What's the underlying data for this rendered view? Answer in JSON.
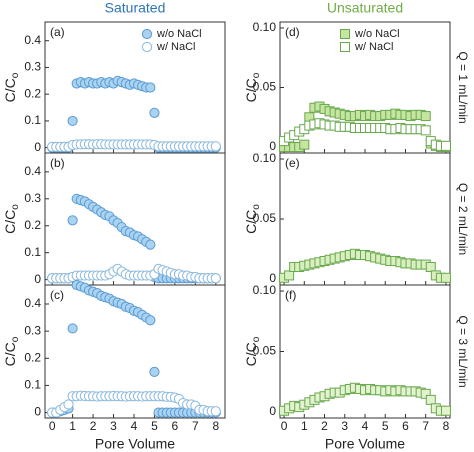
{
  "chart_data": [
    {
      "type": "scatter",
      "title": "Saturated",
      "title_color": "#2e75b6",
      "panel_label": "(a)",
      "ylabel": "C/C",
      "ylabel_sub": "o",
      "legend": "upper right",
      "x": [
        0,
        0.2,
        0.4,
        0.6,
        0.8,
        1,
        1.2,
        1.4,
        1.6,
        1.8,
        2,
        2.2,
        2.4,
        2.6,
        2.8,
        3,
        3.2,
        3.4,
        3.6,
        3.8,
        4,
        4.2,
        4.4,
        4.6,
        4.8,
        5,
        5.2,
        5.4,
        5.6,
        5.8,
        6,
        6.2,
        6.4,
        6.6,
        6.8,
        7,
        7.2,
        7.4,
        7.6,
        7.8,
        8
      ],
      "xlim": [
        -0.35,
        8.45
      ],
      "xticks": [
        0,
        1,
        2,
        3,
        4,
        5,
        6,
        7,
        8
      ],
      "ylim": [
        -0.02,
        0.47
      ],
      "yticks": [
        0,
        0.1,
        0.2,
        0.3,
        0.4
      ],
      "series": [
        {
          "name": "w/o NaCl",
          "marker": "circle",
          "filled": true,
          "color": "#5b9bd5",
          "fill": "#a9d3f0",
          "values": [
            0,
            0,
            0,
            0,
            0,
            0.1,
            0.24,
            0.245,
            0.24,
            0.245,
            0.24,
            0.24,
            0.245,
            0.24,
            0.245,
            0.24,
            0.25,
            0.245,
            0.24,
            0.235,
            0.24,
            0.235,
            0.23,
            0.225,
            0.225,
            0.13,
            0,
            0,
            0,
            0,
            0,
            0,
            0,
            0,
            0,
            0,
            0,
            0,
            0,
            0,
            0
          ]
        },
        {
          "name": "w/  NaCl",
          "marker": "circle",
          "filled": false,
          "color": "#8ab8dc",
          "fill": "#ffffff",
          "values": [
            0.003,
            0.003,
            0.003,
            0.003,
            0.003,
            0.01,
            0.012,
            0.012,
            0.013,
            0.013,
            0.012,
            0.013,
            0.013,
            0.012,
            0.012,
            0.012,
            0.012,
            0.012,
            0.012,
            0.012,
            0.012,
            0.012,
            0.012,
            0.012,
            0.012,
            0.01,
            0.005,
            0.005,
            0.005,
            0.005,
            0.005,
            0.005,
            0.005,
            0.005,
            0.005,
            0.005,
            0.005,
            0.005,
            0.005,
            0.005,
            0.005
          ]
        }
      ]
    },
    {
      "type": "scatter",
      "panel_label": "(b)",
      "ylabel": "C/C",
      "ylabel_sub": "o",
      "x": [
        0,
        0.2,
        0.4,
        0.6,
        0.8,
        1,
        1.2,
        1.4,
        1.6,
        1.8,
        2,
        2.2,
        2.4,
        2.6,
        2.8,
        3,
        3.2,
        3.4,
        3.6,
        3.8,
        4,
        4.2,
        4.4,
        4.6,
        4.8,
        5,
        5.2,
        5.4,
        5.6,
        5.8,
        6,
        6.2,
        6.4,
        6.6,
        6.8,
        7,
        7.2,
        7.4,
        7.6,
        7.8,
        8
      ],
      "xlim": [
        -0.35,
        8.45
      ],
      "xticks": [
        0,
        1,
        2,
        3,
        4,
        5,
        6,
        7,
        8
      ],
      "ylim": [
        -0.02,
        0.47
      ],
      "yticks": [
        0,
        0.1,
        0.2,
        0.3,
        0.4
      ],
      "series": [
        {
          "marker": "circle",
          "filled": true,
          "color": "#5b9bd5",
          "fill": "#a9d3f0",
          "values": [
            0.005,
            0.005,
            0.005,
            0.005,
            0.005,
            0.22,
            0.3,
            0.295,
            0.29,
            0.28,
            0.27,
            0.26,
            0.25,
            0.24,
            0.235,
            0.22,
            0.21,
            0.195,
            0.18,
            0.175,
            0.165,
            0.16,
            0.15,
            0.14,
            0.13,
            0.01,
            0.005,
            0.005,
            0.005,
            0.005,
            0.005,
            0.005,
            0.005,
            0.005,
            0.005,
            0.005,
            0.005,
            0.005,
            0.005,
            0.005,
            0.005
          ]
        },
        {
          "marker": "circle",
          "filled": false,
          "color": "#8ab8dc",
          "fill": "#ffffff",
          "values": [
            0.005,
            0.005,
            0.005,
            0.005,
            0.005,
            0.01,
            0.015,
            0.015,
            0.015,
            0.015,
            0.015,
            0.015,
            0.015,
            0.015,
            0.02,
            0.03,
            0.04,
            0.03,
            0.02,
            0.015,
            0.015,
            0.015,
            0.015,
            0.015,
            0.015,
            0.02,
            0.04,
            0.035,
            0.03,
            0.025,
            0.02,
            0.02,
            0.015,
            0.015,
            0.01,
            0.01,
            0.005,
            0.005,
            0.005,
            0.005,
            0.005
          ]
        }
      ]
    },
    {
      "type": "scatter",
      "panel_label": "(c)",
      "ylabel": "C/C",
      "ylabel_sub": "o",
      "xlabel": "Pore Volume",
      "x": [
        0,
        0.2,
        0.4,
        0.6,
        0.8,
        1,
        1.2,
        1.4,
        1.6,
        1.8,
        2,
        2.2,
        2.4,
        2.6,
        2.8,
        3,
        3.2,
        3.4,
        3.6,
        3.8,
        4,
        4.2,
        4.4,
        4.6,
        4.8,
        5,
        5.2,
        5.4,
        5.6,
        5.8,
        6,
        6.2,
        6.4,
        6.6,
        6.8,
        7,
        7.2,
        7.4,
        7.6,
        7.8,
        8
      ],
      "xlim": [
        -0.35,
        8.45
      ],
      "xticks": [
        0,
        1,
        2,
        3,
        4,
        5,
        6,
        7,
        8
      ],
      "ylim": [
        -0.02,
        0.47
      ],
      "yticks": [
        0,
        0.1,
        0.2,
        0.3,
        0.4
      ],
      "series": [
        {
          "marker": "circle",
          "filled": true,
          "color": "#5b9bd5",
          "fill": "#a9d3f0",
          "values": [
            0,
            0,
            0.005,
            0.01,
            0.015,
            0.31,
            0.47,
            0.465,
            0.46,
            0.45,
            0.445,
            0.44,
            0.43,
            0.425,
            0.42,
            0.41,
            0.405,
            0.4,
            0.39,
            0.385,
            0.375,
            0.37,
            0.36,
            0.35,
            0.34,
            0.15,
            0,
            0,
            0,
            0,
            0,
            0,
            0,
            0,
            0,
            0,
            0,
            0,
            0,
            0,
            0
          ]
        },
        {
          "marker": "circle",
          "filled": false,
          "color": "#8ab8dc",
          "fill": "#ffffff",
          "values": [
            0,
            0,
            0.01,
            0.02,
            0.03,
            0.06,
            0.06,
            0.062,
            0.061,
            0.06,
            0.06,
            0.059,
            0.06,
            0.06,
            0.06,
            0.061,
            0.06,
            0.06,
            0.059,
            0.06,
            0.06,
            0.06,
            0.059,
            0.06,
            0.06,
            0.06,
            0.06,
            0.06,
            0.058,
            0.058,
            0.055,
            0.05,
            0.035,
            0.03,
            0.03,
            0.025,
            0.01,
            0.01,
            0.005,
            0.005,
            0.005
          ]
        }
      ]
    },
    {
      "type": "scatter",
      "title": "Unsaturated",
      "title_color": "#70ad47",
      "panel_label": "(d)",
      "ylabel": "C/C",
      "ylabel_sub": "o",
      "side_label": "Q = 1 mL/min",
      "legend": "upper center",
      "x": [
        0,
        0.25,
        0.5,
        0.75,
        1,
        1.25,
        1.5,
        1.75,
        2,
        2.25,
        2.5,
        2.75,
        3,
        3.25,
        3.5,
        3.75,
        4,
        4.25,
        4.5,
        4.75,
        5,
        5.25,
        5.5,
        5.75,
        6,
        6.25,
        6.5,
        6.75,
        7,
        7.25,
        7.5,
        7.75,
        8
      ],
      "xlim": [
        -0.2,
        8.2
      ],
      "xticks": [
        0,
        1,
        2,
        3,
        4,
        5,
        6,
        7,
        8
      ],
      "ylim": [
        -0.005,
        0.105
      ],
      "yticks": [
        0,
        0.05,
        {
          "value": 0.1,
          "label": "0.10"
        }
      ],
      "series": [
        {
          "name": "w/o NaCl",
          "marker": "square",
          "filled": true,
          "color": "#6aa84f",
          "fill": "#c6e5a0",
          "values": [
            0,
            0,
            0,
            0,
            0.002,
            0.025,
            0.033,
            0.034,
            0.032,
            0.03,
            0.029,
            0.028,
            0.027,
            0.026,
            0.026,
            0.027,
            0.026,
            0.027,
            0.026,
            0.026,
            0.027,
            0.027,
            0.028,
            0.027,
            0.027,
            0.026,
            0.027,
            0.027,
            0.026,
            0.003,
            0.001,
            0,
            0
          ]
        },
        {
          "name": "w/  NaCl",
          "marker": "square",
          "filled": false,
          "color": "#6aa84f",
          "fill": "#ffffff",
          "values": [
            0.005,
            0.008,
            0.01,
            0.013,
            0.015,
            0.018,
            0.019,
            0.02,
            0.019,
            0.018,
            0.018,
            0.017,
            0.017,
            0.017,
            0.016,
            0.016,
            0.016,
            0.016,
            0.016,
            0.016,
            0.016,
            0.015,
            0.015,
            0.016,
            0.015,
            0.015,
            0.015,
            0.015,
            0.014,
            0.005,
            0.002,
            0.001,
            0.001
          ]
        }
      ]
    },
    {
      "type": "scatter",
      "panel_label": "(e)",
      "ylabel": "C/C",
      "ylabel_sub": "o",
      "side_label": "Q = 2 mL/min",
      "x": [
        0,
        0.25,
        0.5,
        0.75,
        1,
        1.25,
        1.5,
        1.75,
        2,
        2.25,
        2.5,
        2.75,
        3,
        3.25,
        3.5,
        3.75,
        4,
        4.25,
        4.5,
        4.75,
        5,
        5.25,
        5.5,
        5.75,
        6,
        6.25,
        6.5,
        6.75,
        7,
        7.25,
        7.5,
        7.75,
        8
      ],
      "xlim": [
        -0.2,
        8.2
      ],
      "xticks": [
        0,
        1,
        2,
        3,
        4,
        5,
        6,
        7,
        8
      ],
      "ylim": [
        -0.005,
        0.105
      ],
      "yticks": [
        0,
        0.05,
        {
          "value": 0.1,
          "label": "0.10"
        }
      ],
      "series": [
        {
          "marker": "square",
          "filled": true,
          "color": "#6aa84f",
          "fill": "#d9efc0",
          "values": [
            0.001,
            0.003,
            0.01,
            0.01,
            0.011,
            0.012,
            0.013,
            0.014,
            0.015,
            0.016,
            0.017,
            0.018,
            0.019,
            0.02,
            0.021,
            0.02,
            0.02,
            0.019,
            0.018,
            0.017,
            0.016,
            0.015,
            0.015,
            0.014,
            0.013,
            0.013,
            0.012,
            0.012,
            0.012,
            0.01,
            0.003,
            0.001,
            0.001
          ]
        }
      ]
    },
    {
      "type": "scatter",
      "panel_label": "(f)",
      "ylabel": "C/C",
      "ylabel_sub": "o",
      "side_label": "Q = 3 mL/min",
      "xlabel": "Pore Volume",
      "x": [
        0,
        0.25,
        0.5,
        0.75,
        1,
        1.25,
        1.5,
        1.75,
        2,
        2.25,
        2.5,
        2.75,
        3,
        3.25,
        3.5,
        3.75,
        4,
        4.25,
        4.5,
        4.75,
        5,
        5.25,
        5.5,
        5.75,
        6,
        6.25,
        6.5,
        6.75,
        7,
        7.25,
        7.5,
        7.75,
        8
      ],
      "xlim": [
        -0.2,
        8.2
      ],
      "xticks": [
        0,
        1,
        2,
        3,
        4,
        5,
        6,
        7,
        8
      ],
      "ylim": [
        -0.005,
        0.105
      ],
      "yticks": [
        0,
        0.05,
        {
          "value": 0.1,
          "label": "0.10"
        }
      ],
      "series": [
        {
          "marker": "square",
          "filled": true,
          "color": "#6aa84f",
          "fill": "#e3f3d0",
          "values": [
            0.001,
            0.003,
            0.005,
            0.004,
            0.006,
            0.008,
            0.01,
            0.012,
            0.013,
            0.015,
            0.016,
            0.016,
            0.018,
            0.019,
            0.02,
            0.019,
            0.018,
            0.019,
            0.018,
            0.018,
            0.017,
            0.018,
            0.017,
            0.018,
            0.017,
            0.017,
            0.017,
            0.016,
            0.015,
            0.01,
            0.003,
            0.001,
            0.001
          ]
        }
      ]
    }
  ]
}
